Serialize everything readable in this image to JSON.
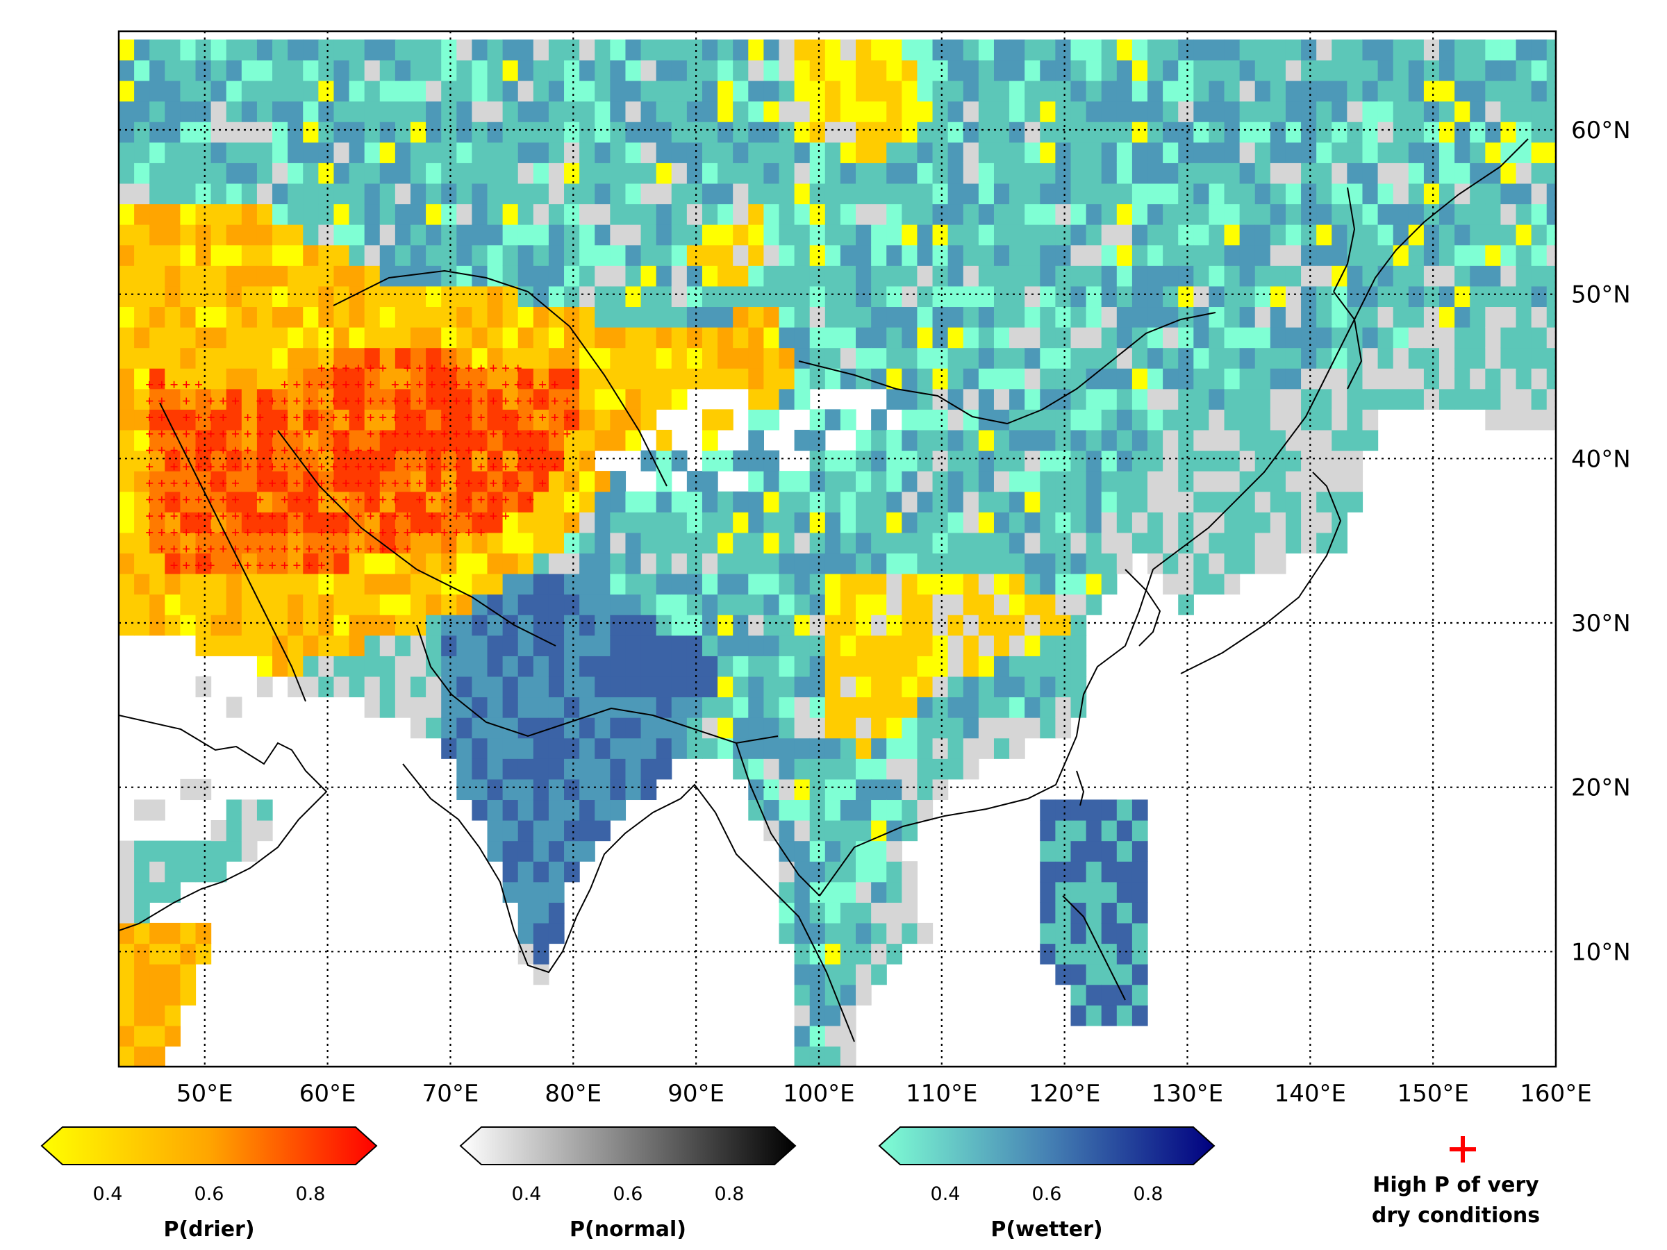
{
  "map": {
    "lon_range": [
      43,
      160
    ],
    "lat_range": [
      3,
      66
    ],
    "gridlines": "dotted",
    "lon_ticks": [
      {
        "value": 50,
        "label": "50°E"
      },
      {
        "value": 60,
        "label": "60°E"
      },
      {
        "value": 70,
        "label": "70°E"
      },
      {
        "value": 80,
        "label": "80°E"
      },
      {
        "value": 90,
        "label": "90°E"
      },
      {
        "value": 100,
        "label": "100°E"
      },
      {
        "value": 110,
        "label": "110°E"
      },
      {
        "value": 120,
        "label": "120°E"
      },
      {
        "value": 130,
        "label": "130°E"
      },
      {
        "value": 140,
        "label": "140°E"
      },
      {
        "value": 150,
        "label": "150°E"
      },
      {
        "value": 160,
        "label": "160°E"
      }
    ],
    "lat_ticks": [
      {
        "value": 10,
        "label": "10°N"
      },
      {
        "value": 20,
        "label": "20°N"
      },
      {
        "value": 30,
        "label": "30°N"
      },
      {
        "value": 40,
        "label": "40°N"
      },
      {
        "value": 50,
        "label": "50°N"
      },
      {
        "value": 60,
        "label": "60°N"
      }
    ],
    "colors": {
      "drier": [
        "#ffff00",
        "#ffcc00",
        "#ffa500",
        "#ff7a00",
        "#ff3a00"
      ],
      "normal": [
        "#ffffff",
        "#d6d6d6",
        "#9a9a9a",
        "#4a4a4a",
        "#000000"
      ],
      "wetter": [
        "#7fffd4",
        "#5cc7b8",
        "#4d99b8",
        "#3b63a6",
        "#0a1a7a"
      ],
      "no_data": "#ffffff",
      "marker": "#ff0000",
      "coastline": "#000000"
    }
  },
  "colorbars": [
    {
      "name": "drier",
      "title": "P(drier)",
      "ticks": [
        "0.4",
        "0.6",
        "0.8"
      ],
      "start": "#ffff00",
      "mid": "#ffa500",
      "end": "#ff0000"
    },
    {
      "name": "normal",
      "title": "P(normal)",
      "ticks": [
        "0.4",
        "0.6",
        "0.8"
      ],
      "start": "#ffffff",
      "mid": "#808080",
      "end": "#000000"
    },
    {
      "name": "wetter",
      "title": "P(wetter)",
      "ticks": [
        "0.4",
        "0.6",
        "0.8"
      ],
      "start": "#7fffd4",
      "mid": "#4682b4",
      "end": "#000080"
    }
  ],
  "marker_legend": {
    "symbol": "+",
    "line1": "High P of very",
    "line2": "dry conditions"
  }
}
